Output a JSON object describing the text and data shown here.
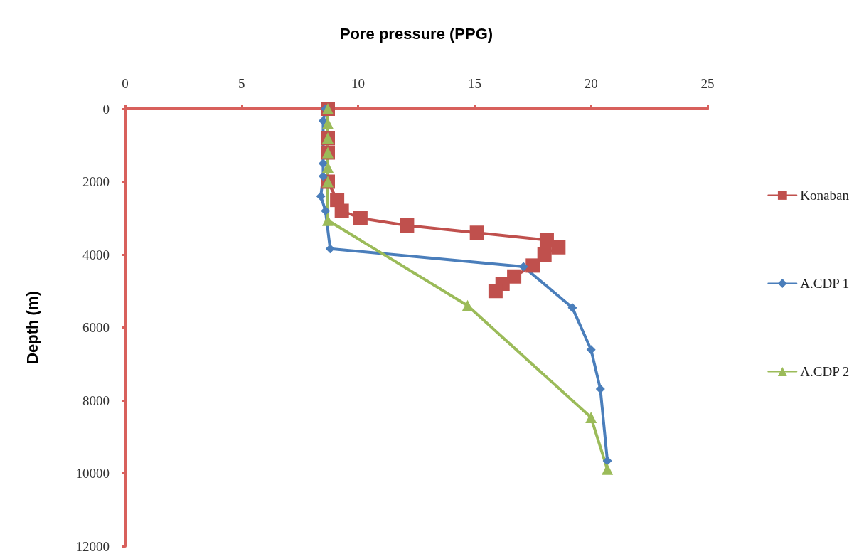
{
  "chart_data": {
    "type": "line",
    "xlabel": "Pore pressure (PPG)",
    "ylabel": "Depth (m)",
    "xlim": [
      0,
      25
    ],
    "xticks": [
      0,
      5,
      10,
      15,
      20,
      25
    ],
    "ylim": [
      12000,
      0
    ],
    "yticks": [
      0,
      2000,
      4000,
      6000,
      8000,
      10000,
      12000
    ],
    "grid": false,
    "legend": "right",
    "series": [
      {
        "name": "Konaban",
        "color": "#c0504d",
        "marker": "square",
        "x": [
          8.7,
          8.7,
          8.7,
          8.7,
          9.1,
          9.3,
          10.1,
          12.1,
          15.1,
          18.1,
          18.6,
          18.0,
          17.5,
          16.7,
          16.2,
          15.9
        ],
        "values": [
          0,
          800,
          1200,
          2000,
          2500,
          2800,
          3000,
          3200,
          3400,
          3600,
          3800,
          4000,
          4300,
          4600,
          4800,
          5000
        ]
      },
      {
        "name": "A.CDP 1",
        "color": "#4a7ebb",
        "marker": "diamond",
        "x": [
          8.6,
          8.5,
          8.5,
          8.5,
          8.4,
          8.6,
          8.8,
          17.1,
          19.2,
          20.0,
          20.4,
          20.7
        ],
        "values": [
          0,
          330,
          1500,
          1850,
          2400,
          2800,
          3840,
          4330,
          5460,
          6610,
          7690,
          9660
        ]
      },
      {
        "name": "A.CDP 2",
        "color": "#9bbb59",
        "marker": "triangle",
        "x": [
          8.7,
          8.7,
          8.7,
          8.7,
          8.7,
          8.7,
          8.7,
          14.7,
          20.0,
          20.7
        ],
        "values": [
          0,
          400,
          800,
          1200,
          1600,
          2000,
          3060,
          5400,
          8470,
          9890
        ]
      }
    ]
  }
}
